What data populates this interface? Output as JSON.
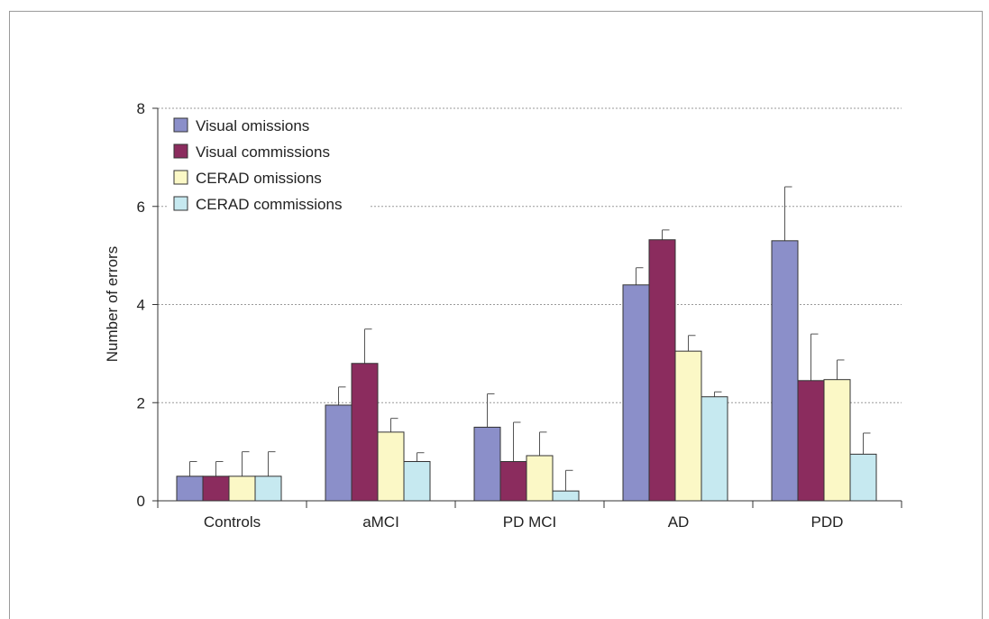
{
  "chart_data": {
    "type": "bar",
    "ylabel": "Number of errors",
    "xlabel": "",
    "ylim": [
      0,
      8
    ],
    "yticks": [
      0,
      2,
      4,
      6,
      8
    ],
    "grid": true,
    "legend_position": "top-left",
    "categories": [
      "Controls",
      "aMCI",
      "PD MCI",
      "AD",
      "PDD"
    ],
    "series": [
      {
        "name": "Visual omissions",
        "color": "#8b8fc9",
        "values": [
          0.5,
          1.95,
          1.5,
          4.4,
          5.3
        ],
        "errors": [
          0.3,
          0.37,
          0.68,
          0.35,
          1.1
        ]
      },
      {
        "name": "Visual commissions",
        "color": "#8b2c5e",
        "values": [
          0.5,
          2.8,
          0.8,
          5.32,
          2.45
        ],
        "errors": [
          0.3,
          0.7,
          0.8,
          0.2,
          0.95
        ]
      },
      {
        "name": "CERAD omissions",
        "color": "#fbf8c6",
        "values": [
          0.5,
          1.4,
          0.92,
          3.05,
          2.47
        ],
        "errors": [
          0.5,
          0.28,
          0.48,
          0.32,
          0.4
        ]
      },
      {
        "name": "CERAD commissions",
        "color": "#c6e9f0",
        "values": [
          0.5,
          0.8,
          0.2,
          2.12,
          0.95
        ],
        "errors": [
          0.5,
          0.18,
          0.42,
          0.1,
          0.43
        ]
      }
    ]
  }
}
